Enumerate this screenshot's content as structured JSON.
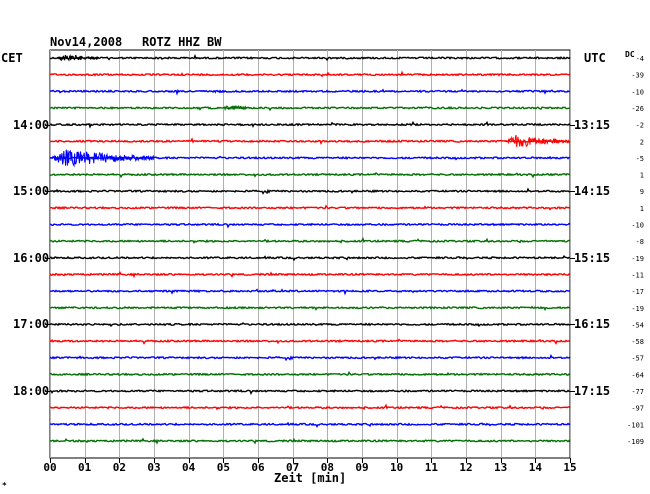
{
  "header": {
    "date": "Nov14,2008",
    "station": "ROTZ HHZ BW",
    "left_zone": "CET",
    "right_zone": "UTC",
    "dc_label": "DC"
  },
  "footer": {
    "xlabel": "Zeit [min]",
    "corner_mark": "*"
  },
  "chart_data": {
    "type": "line",
    "title": "Nov14,2008 ROTZ HHZ BW",
    "xlabel": "Zeit [min]",
    "xlim": [
      0,
      15
    ],
    "x_ticks": [
      "00",
      "01",
      "02",
      "03",
      "04",
      "05",
      "06",
      "07",
      "08",
      "09",
      "10",
      "11",
      "12",
      "13",
      "14",
      "15"
    ],
    "grid": true,
    "trace_colors": [
      "#000000",
      "#ff0000",
      "#0000ff",
      "#007000"
    ],
    "left_time_labels": [
      {
        "row": 4,
        "text": "14:00"
      },
      {
        "row": 8,
        "text": "15:00"
      },
      {
        "row": 12,
        "text": "16:00"
      },
      {
        "row": 16,
        "text": "17:00"
      },
      {
        "row": 20,
        "text": "18:00"
      }
    ],
    "right_time_labels": [
      {
        "row": 4,
        "text": "13:15"
      },
      {
        "row": 8,
        "text": "14:15"
      },
      {
        "row": 12,
        "text": "15:15"
      },
      {
        "row": 16,
        "text": "16:15"
      },
      {
        "row": 20,
        "text": "17:15"
      }
    ],
    "dc_offsets": [
      "-4",
      "-39",
      "-10",
      "-26",
      "-2",
      "2",
      "-5",
      "1",
      "9",
      "1",
      "-10",
      "-8",
      "-19",
      "-11",
      "-17",
      "-19",
      "-54",
      "-58",
      "-57",
      "-64",
      "-77",
      "-97",
      "-101",
      "-109"
    ],
    "bursts": [
      {
        "row": 0,
        "start": 0.2,
        "end": 1.4,
        "amplitude": 6
      },
      {
        "row": 2,
        "start": 4.7,
        "end": 5.1,
        "amplitude": 3
      },
      {
        "row": 3,
        "start": 5.0,
        "end": 5.8,
        "amplitude": 5
      },
      {
        "row": 5,
        "start": 13.1,
        "end": 15.0,
        "amplitude": 9
      },
      {
        "row": 6,
        "start": 0.0,
        "end": 3.0,
        "amplitude": 12
      }
    ]
  }
}
